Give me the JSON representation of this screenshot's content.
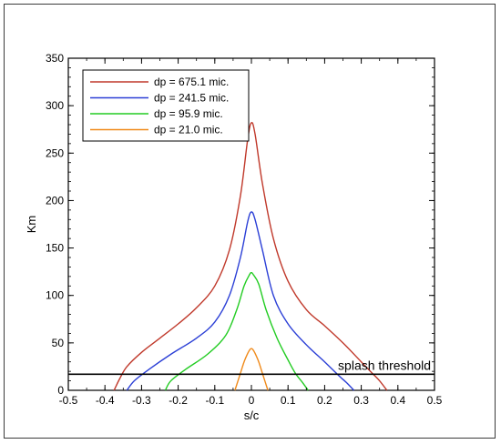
{
  "chart_data": {
    "type": "line",
    "title": "",
    "xlabel": "s/c",
    "ylabel": "Km",
    "xlim": [
      -0.5,
      0.5
    ],
    "ylim": [
      0,
      350
    ],
    "xticks": [
      -0.5,
      -0.4,
      -0.3,
      -0.2,
      -0.1,
      0,
      0.1,
      0.2,
      0.3,
      0.4,
      0.5
    ],
    "xtick_labels": [
      "-0.5",
      "-0.4",
      "-0.3",
      "-0.2",
      "-0.1",
      "0",
      "0.1",
      "0.2",
      "0.3",
      "0.4",
      "0.5"
    ],
    "yticks": [
      0,
      50,
      100,
      150,
      200,
      250,
      300,
      350
    ],
    "ytick_labels": [
      "0",
      "50",
      "100",
      "150",
      "200",
      "250",
      "300",
      "350"
    ],
    "grid": false,
    "legend_position": "top-left",
    "series": [
      {
        "name": "dp = 675.1 mic.",
        "color": "#c0392b",
        "x": [
          -0.375,
          -0.36,
          -0.34,
          -0.3,
          -0.25,
          -0.2,
          -0.15,
          -0.1,
          -0.06,
          -0.03,
          -0.01,
          0,
          0.01,
          0.03,
          0.06,
          0.1,
          0.15,
          0.2,
          0.25,
          0.3,
          0.33,
          0.35,
          0.37
        ],
        "y": [
          0,
          12,
          25,
          40,
          55,
          70,
          87,
          110,
          148,
          205,
          265,
          282,
          270,
          218,
          160,
          115,
          85,
          68,
          50,
          30,
          18,
          10,
          0
        ]
      },
      {
        "name": "dp = 241.5 mic.",
        "color": "#2b3fd6",
        "x": [
          -0.34,
          -0.32,
          -0.28,
          -0.22,
          -0.15,
          -0.1,
          -0.06,
          -0.03,
          -0.01,
          0,
          0.01,
          0.03,
          0.06,
          0.1,
          0.15,
          0.2,
          0.24,
          0.26,
          0.28
        ],
        "y": [
          0,
          10,
          22,
          38,
          55,
          72,
          100,
          140,
          178,
          188,
          180,
          148,
          100,
          70,
          48,
          30,
          15,
          8,
          0
        ]
      },
      {
        "name": "dp = 95.9 mic.",
        "color": "#22cc22",
        "x": [
          -0.235,
          -0.22,
          -0.18,
          -0.12,
          -0.07,
          -0.04,
          -0.02,
          -0.005,
          0,
          0.005,
          0.02,
          0.04,
          0.07,
          0.1,
          0.12,
          0.14,
          0.155
        ],
        "y": [
          0,
          10,
          22,
          38,
          58,
          85,
          110,
          122,
          124,
          122,
          112,
          85,
          55,
          32,
          18,
          8,
          0
        ]
      },
      {
        "name": "dp = 21.0 mic.",
        "color": "#f08a1a",
        "x": [
          -0.045,
          -0.03,
          -0.02,
          -0.01,
          -0.004,
          0,
          0.004,
          0.01,
          0.02,
          0.03,
          0.045
        ],
        "y": [
          0,
          18,
          30,
          39,
          43,
          44,
          43,
          39,
          30,
          18,
          0
        ]
      }
    ],
    "reference_lines": [
      {
        "label": "splash threshold",
        "y": 17,
        "color": "#000000"
      }
    ]
  }
}
